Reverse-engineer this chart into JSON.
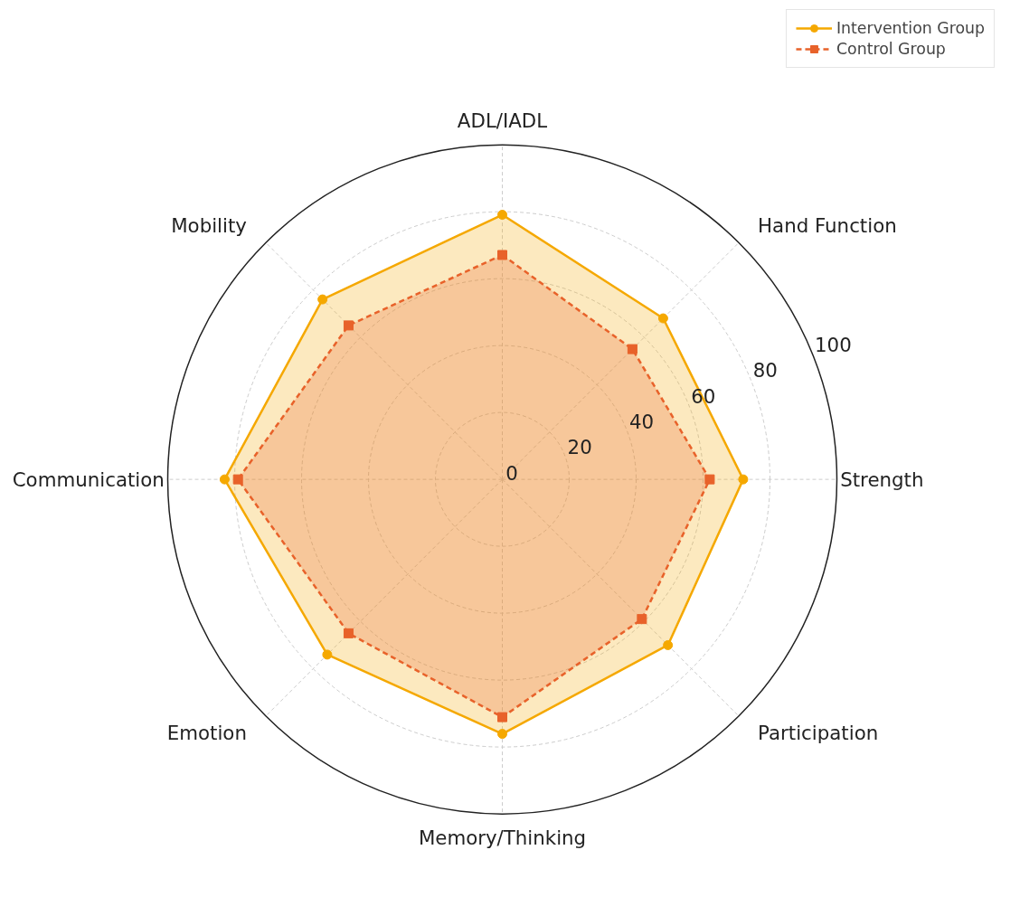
{
  "chart_data": {
    "type": "radar",
    "categories": [
      "ADL/IADL",
      "Hand Function",
      "Strength",
      "Participation",
      "Memory/Thinking",
      "Emotion",
      "Communication",
      "Mobility"
    ],
    "series": [
      {
        "name": "Intervention Group",
        "color": "#f5a800",
        "values": [
          79,
          68,
          72,
          70,
          76,
          74,
          83,
          76
        ],
        "marker": "circle",
        "line_style": "solid"
      },
      {
        "name": "Control Group",
        "color": "#e8622a",
        "values": [
          67,
          55,
          62,
          59,
          71,
          65,
          79,
          65
        ],
        "marker": "square",
        "line_style": "dashed"
      }
    ],
    "ylim": [
      0,
      100
    ],
    "yticks": [
      0,
      20,
      40,
      60,
      80,
      100
    ],
    "grid": true,
    "legend": "top right"
  }
}
